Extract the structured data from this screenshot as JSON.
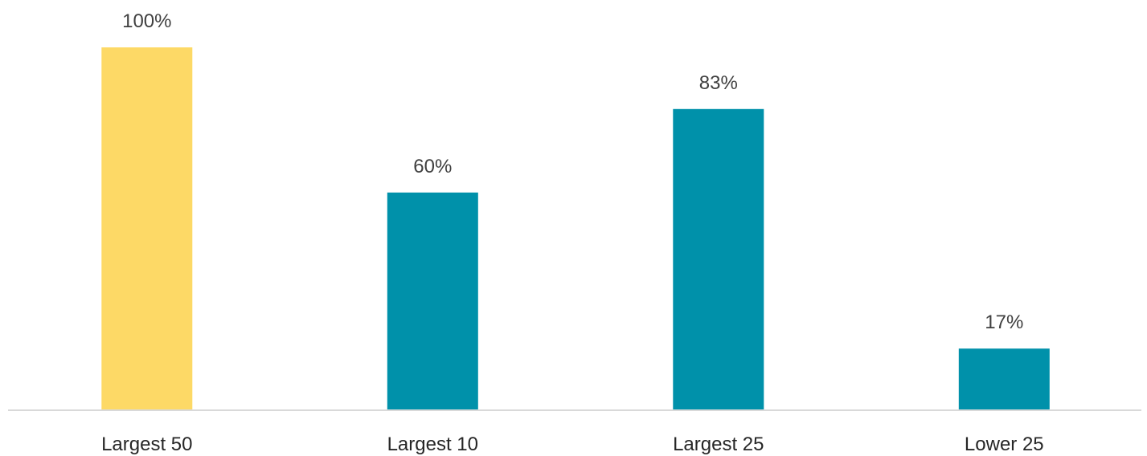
{
  "chart_data": {
    "type": "bar",
    "categories": [
      "Largest 50",
      "Largest 10",
      "Largest 25",
      "Lower 25"
    ],
    "values": [
      100,
      60,
      83,
      17
    ],
    "value_labels": [
      "100%",
      "60%",
      "83%",
      "17%"
    ],
    "unit": "%",
    "ylim": [
      0,
      100
    ],
    "grid": false,
    "legend": "none",
    "colors": {
      "highlight": "#FDD966",
      "bar": "#0091AA",
      "axis": "#D9D9D9",
      "label_text": "#404040",
      "tick_text": "#262626"
    },
    "bar_colors": [
      "#FDD966",
      "#0091AA",
      "#0091AA",
      "#0091AA"
    ]
  }
}
